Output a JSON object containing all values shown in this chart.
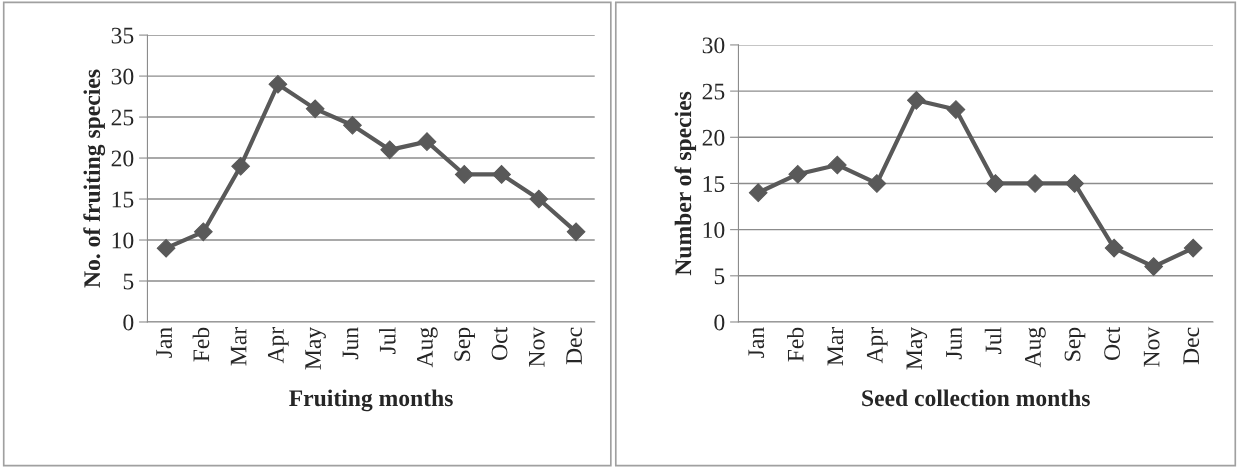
{
  "chart_data": [
    {
      "type": "line",
      "xlabel": "Fruiting months",
      "ylabel": "No. of fruiting species",
      "categories": [
        "Jan",
        "Feb",
        "Mar",
        "Apr",
        "May",
        "Jun",
        "Jul",
        "Aug",
        "Sep",
        "Oct",
        "Nov",
        "Dec"
      ],
      "series": [
        {
          "color": "#595959",
          "values": [
            9,
            11,
            19,
            29,
            26,
            24,
            21,
            22,
            18,
            18,
            15,
            11
          ]
        }
      ],
      "ylim": [
        0,
        35
      ],
      "yticks": [
        0,
        5,
        10,
        15,
        20,
        25,
        30,
        35
      ],
      "grid": "y",
      "marker": "diamond",
      "line_style": "solid",
      "legend": false
    },
    {
      "type": "line",
      "xlabel": "Seed collection months",
      "ylabel": "Number of species",
      "categories": [
        "Jan",
        "Feb",
        "Mar",
        "Apr",
        "May",
        "Jun",
        "Jul",
        "Aug",
        "Sep",
        "Oct",
        "Nov",
        "Dec"
      ],
      "series": [
        {
          "color": "#595959",
          "values": [
            14,
            16,
            17,
            15,
            24,
            23,
            15,
            15,
            15,
            8,
            6,
            8
          ]
        }
      ],
      "ylim": [
        0,
        30
      ],
      "yticks": [
        0,
        5,
        10,
        15,
        20,
        25,
        30
      ],
      "grid": "y",
      "marker": "diamond",
      "line_style": "solid",
      "legend": false
    }
  ]
}
